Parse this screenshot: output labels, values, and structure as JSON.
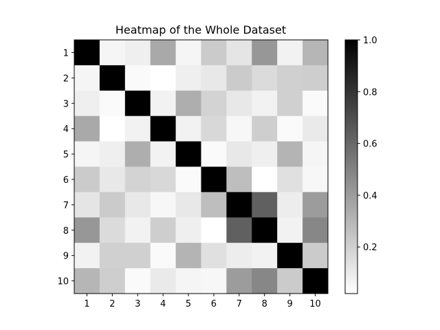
{
  "chart_data": {
    "type": "heatmap",
    "title": "Heatmap of the Whole Dataset",
    "xlabel": "",
    "ylabel": "",
    "x_categories": [
      "1",
      "2",
      "3",
      "4",
      "5",
      "6",
      "7",
      "8",
      "9",
      "10"
    ],
    "y_categories": [
      "1",
      "2",
      "3",
      "4",
      "5",
      "6",
      "7",
      "8",
      "9",
      "10"
    ],
    "colormap": "Greys",
    "color_range": [
      0.02,
      1.0
    ],
    "colorbar_ticks": [
      "0.2",
      "0.4",
      "0.6",
      "0.8",
      "1.0"
    ],
    "colorbar_tick_values": [
      0.2,
      0.4,
      0.6,
      0.8,
      1.0
    ],
    "values": [
      [
        1.0,
        0.06,
        0.08,
        0.35,
        0.06,
        0.22,
        0.12,
        0.42,
        0.07,
        0.3
      ],
      [
        0.06,
        1.0,
        0.04,
        0.02,
        0.08,
        0.11,
        0.22,
        0.16,
        0.2,
        0.21
      ],
      [
        0.08,
        0.04,
        1.0,
        0.07,
        0.33,
        0.19,
        0.11,
        0.07,
        0.2,
        0.04
      ],
      [
        0.35,
        0.02,
        0.07,
        1.0,
        0.07,
        0.17,
        0.05,
        0.21,
        0.04,
        0.1
      ],
      [
        0.06,
        0.08,
        0.33,
        0.07,
        1.0,
        0.04,
        0.11,
        0.08,
        0.31,
        0.06
      ],
      [
        0.22,
        0.11,
        0.19,
        0.17,
        0.04,
        1.0,
        0.27,
        0.02,
        0.14,
        0.05
      ],
      [
        0.12,
        0.22,
        0.11,
        0.05,
        0.11,
        0.27,
        1.0,
        0.63,
        0.09,
        0.4
      ],
      [
        0.42,
        0.16,
        0.07,
        0.21,
        0.08,
        0.02,
        0.63,
        1.0,
        0.07,
        0.48
      ],
      [
        0.07,
        0.2,
        0.2,
        0.04,
        0.31,
        0.14,
        0.09,
        0.07,
        1.0,
        0.22
      ],
      [
        0.3,
        0.21,
        0.04,
        0.1,
        0.06,
        0.05,
        0.4,
        0.48,
        0.22,
        1.0
      ]
    ]
  }
}
